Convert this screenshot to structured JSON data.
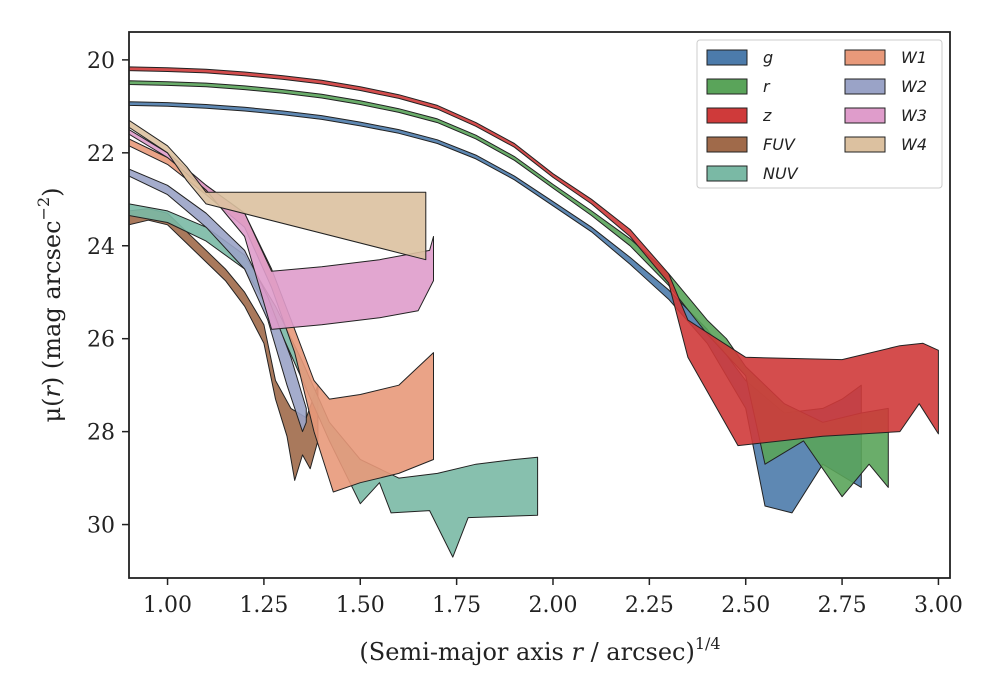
{
  "chart_data": {
    "type": "area",
    "xlabel_main": "(Semi-major axis ",
    "xlabel_var": "r",
    "xlabel_unit": " / arcsec)",
    "xlabel_sup": "1/4",
    "ylabel_sym": "μ(",
    "ylabel_var": "r",
    "ylabel_rest": ") (mag arcsec",
    "ylabel_sup": "−2",
    "ylabel_close": ")",
    "xlim": [
      0.9,
      3.03
    ],
    "ylim": [
      31.15,
      19.4
    ],
    "xticks": [
      1.0,
      1.25,
      1.5,
      1.75,
      2.0,
      2.25,
      2.5,
      2.75,
      3.0
    ],
    "xtick_labels": [
      "1.00",
      "1.25",
      "1.50",
      "1.75",
      "2.00",
      "2.25",
      "2.50",
      "2.75",
      "3.00"
    ],
    "yticks": [
      20,
      22,
      24,
      26,
      28,
      30
    ],
    "ytick_labels": [
      "20",
      "22",
      "24",
      "26",
      "28",
      "30"
    ],
    "legend_position": "top-right",
    "series": [
      {
        "name": "g",
        "color": "#4c7bab",
        "upper": [
          [
            0.9,
            20.9
          ],
          [
            1.0,
            20.92
          ],
          [
            1.1,
            20.96
          ],
          [
            1.2,
            21.02
          ],
          [
            1.3,
            21.1
          ],
          [
            1.4,
            21.2
          ],
          [
            1.5,
            21.34
          ],
          [
            1.6,
            21.5
          ],
          [
            1.7,
            21.72
          ],
          [
            1.8,
            22.05
          ],
          [
            1.9,
            22.5
          ],
          [
            2.0,
            23.05
          ],
          [
            2.1,
            23.6
          ],
          [
            2.2,
            24.25
          ],
          [
            2.3,
            24.95
          ],
          [
            2.4,
            25.8
          ],
          [
            2.5,
            26.9
          ],
          [
            2.6,
            27.6
          ],
          [
            2.7,
            27.5
          ],
          [
            2.75,
            27.3
          ],
          [
            2.8,
            27.0
          ]
        ],
        "lower": [
          [
            0.9,
            20.98
          ],
          [
            1.0,
            21.0
          ],
          [
            1.1,
            21.04
          ],
          [
            1.2,
            21.1
          ],
          [
            1.3,
            21.18
          ],
          [
            1.4,
            21.28
          ],
          [
            1.5,
            21.42
          ],
          [
            1.6,
            21.58
          ],
          [
            1.7,
            21.8
          ],
          [
            1.8,
            22.13
          ],
          [
            1.9,
            22.58
          ],
          [
            2.0,
            23.14
          ],
          [
            2.1,
            23.7
          ],
          [
            2.2,
            24.4
          ],
          [
            2.3,
            25.15
          ],
          [
            2.4,
            26.1
          ],
          [
            2.5,
            27.5
          ],
          [
            2.55,
            29.6
          ],
          [
            2.62,
            29.75
          ],
          [
            2.7,
            28.7
          ],
          [
            2.8,
            29.2
          ]
        ]
      },
      {
        "name": "r",
        "color": "#5aa45a",
        "upper": [
          [
            0.9,
            20.45
          ],
          [
            1.0,
            20.47
          ],
          [
            1.1,
            20.5
          ],
          [
            1.2,
            20.56
          ],
          [
            1.3,
            20.64
          ],
          [
            1.4,
            20.74
          ],
          [
            1.5,
            20.88
          ],
          [
            1.6,
            21.05
          ],
          [
            1.7,
            21.27
          ],
          [
            1.8,
            21.62
          ],
          [
            1.9,
            22.08
          ],
          [
            2.0,
            22.68
          ],
          [
            2.1,
            23.25
          ],
          [
            2.2,
            23.85
          ],
          [
            2.3,
            24.6
          ],
          [
            2.4,
            25.6
          ],
          [
            2.45,
            26.0
          ],
          [
            2.5,
            26.6
          ],
          [
            2.6,
            27.4
          ],
          [
            2.7,
            27.8
          ],
          [
            2.8,
            27.6
          ],
          [
            2.87,
            27.5
          ]
        ],
        "lower": [
          [
            0.9,
            20.53
          ],
          [
            1.0,
            20.55
          ],
          [
            1.1,
            20.58
          ],
          [
            1.2,
            20.64
          ],
          [
            1.3,
            20.72
          ],
          [
            1.4,
            20.82
          ],
          [
            1.5,
            20.96
          ],
          [
            1.6,
            21.13
          ],
          [
            1.7,
            21.35
          ],
          [
            1.8,
            21.7
          ],
          [
            1.9,
            22.16
          ],
          [
            2.0,
            22.76
          ],
          [
            2.1,
            23.35
          ],
          [
            2.2,
            24.0
          ],
          [
            2.3,
            24.85
          ],
          [
            2.4,
            25.9
          ],
          [
            2.5,
            26.8
          ],
          [
            2.55,
            28.7
          ],
          [
            2.65,
            28.2
          ],
          [
            2.75,
            29.4
          ],
          [
            2.82,
            28.7
          ],
          [
            2.87,
            29.2
          ]
        ]
      },
      {
        "name": "z",
        "color": "#cf3a3a",
        "upper": [
          [
            0.9,
            20.15
          ],
          [
            1.0,
            20.17
          ],
          [
            1.1,
            20.2
          ],
          [
            1.2,
            20.26
          ],
          [
            1.3,
            20.34
          ],
          [
            1.4,
            20.44
          ],
          [
            1.5,
            20.58
          ],
          [
            1.6,
            20.75
          ],
          [
            1.7,
            20.98
          ],
          [
            1.8,
            21.35
          ],
          [
            1.9,
            21.8
          ],
          [
            2.0,
            22.45
          ],
          [
            2.1,
            23.0
          ],
          [
            2.2,
            23.65
          ],
          [
            2.3,
            24.6
          ],
          [
            2.35,
            25.6
          ],
          [
            2.5,
            26.4
          ],
          [
            2.75,
            26.45
          ],
          [
            2.9,
            26.15
          ],
          [
            2.96,
            26.1
          ],
          [
            3.0,
            26.25
          ]
        ],
        "lower": [
          [
            0.9,
            20.23
          ],
          [
            1.0,
            20.25
          ],
          [
            1.1,
            20.28
          ],
          [
            1.2,
            20.34
          ],
          [
            1.3,
            20.42
          ],
          [
            1.4,
            20.52
          ],
          [
            1.5,
            20.66
          ],
          [
            1.6,
            20.83
          ],
          [
            1.7,
            21.06
          ],
          [
            1.8,
            21.43
          ],
          [
            1.9,
            21.88
          ],
          [
            2.0,
            22.53
          ],
          [
            2.1,
            23.1
          ],
          [
            2.2,
            23.8
          ],
          [
            2.3,
            24.8
          ],
          [
            2.35,
            26.4
          ],
          [
            2.48,
            28.3
          ],
          [
            2.7,
            28.1
          ],
          [
            2.9,
            28.0
          ],
          [
            2.95,
            27.4
          ],
          [
            3.0,
            28.05
          ]
        ]
      },
      {
        "name": "FUV",
        "color": "#a06a4a",
        "upper": [
          [
            0.9,
            23.25
          ],
          [
            0.95,
            23.2
          ],
          [
            1.0,
            23.3
          ],
          [
            1.05,
            23.7
          ],
          [
            1.1,
            24.1
          ],
          [
            1.15,
            24.5
          ],
          [
            1.2,
            25.0
          ],
          [
            1.25,
            25.7
          ],
          [
            1.28,
            26.9
          ],
          [
            1.32,
            27.5
          ],
          [
            1.36,
            27.7
          ],
          [
            1.39,
            27.0
          ]
        ],
        "lower": [
          [
            0.9,
            23.55
          ],
          [
            0.95,
            23.45
          ],
          [
            1.0,
            23.55
          ],
          [
            1.05,
            23.95
          ],
          [
            1.1,
            24.35
          ],
          [
            1.15,
            24.75
          ],
          [
            1.2,
            25.3
          ],
          [
            1.25,
            26.1
          ],
          [
            1.28,
            27.3
          ],
          [
            1.31,
            28.1
          ],
          [
            1.33,
            29.05
          ],
          [
            1.35,
            28.5
          ],
          [
            1.37,
            28.8
          ],
          [
            1.39,
            28.2
          ]
        ]
      },
      {
        "name": "NUV",
        "color": "#7ab9a5",
        "upper": [
          [
            0.9,
            23.1
          ],
          [
            1.0,
            23.25
          ],
          [
            1.1,
            23.6
          ],
          [
            1.2,
            24.2
          ],
          [
            1.28,
            25.3
          ],
          [
            1.35,
            26.5
          ],
          [
            1.42,
            27.8
          ],
          [
            1.5,
            28.6
          ],
          [
            1.6,
            29.0
          ],
          [
            1.7,
            28.9
          ],
          [
            1.8,
            28.7
          ],
          [
            1.9,
            28.6
          ],
          [
            1.96,
            28.55
          ]
        ],
        "lower": [
          [
            0.9,
            23.35
          ],
          [
            1.0,
            23.5
          ],
          [
            1.1,
            23.9
          ],
          [
            1.2,
            24.5
          ],
          [
            1.28,
            25.6
          ],
          [
            1.35,
            26.9
          ],
          [
            1.42,
            28.2
          ],
          [
            1.5,
            29.55
          ],
          [
            1.55,
            29.1
          ],
          [
            1.58,
            29.75
          ],
          [
            1.68,
            29.7
          ],
          [
            1.74,
            30.7
          ],
          [
            1.78,
            29.85
          ],
          [
            1.96,
            29.8
          ]
        ]
      },
      {
        "name": "W1",
        "color": "#e8997a",
        "upper": [
          [
            0.9,
            21.7
          ],
          [
            1.0,
            22.1
          ],
          [
            1.1,
            22.7
          ],
          [
            1.2,
            23.3
          ],
          [
            1.27,
            24.5
          ],
          [
            1.33,
            25.8
          ],
          [
            1.38,
            26.9
          ],
          [
            1.42,
            27.3
          ],
          [
            1.5,
            27.2
          ],
          [
            1.6,
            27.0
          ],
          [
            1.69,
            26.3
          ]
        ],
        "lower": [
          [
            0.9,
            21.85
          ],
          [
            1.0,
            22.25
          ],
          [
            1.1,
            22.9
          ],
          [
            1.2,
            23.6
          ],
          [
            1.27,
            24.9
          ],
          [
            1.33,
            26.3
          ],
          [
            1.38,
            28.0
          ],
          [
            1.43,
            29.3
          ],
          [
            1.5,
            29.1
          ],
          [
            1.6,
            28.9
          ],
          [
            1.69,
            28.6
          ]
        ]
      },
      {
        "name": "W2",
        "color": "#9aa3c7",
        "upper": [
          [
            0.9,
            22.35
          ],
          [
            1.0,
            22.7
          ],
          [
            1.1,
            23.3
          ],
          [
            1.2,
            24.1
          ],
          [
            1.26,
            25.1
          ],
          [
            1.32,
            26.4
          ],
          [
            1.36,
            27.5
          ]
        ],
        "lower": [
          [
            0.9,
            22.5
          ],
          [
            1.0,
            22.9
          ],
          [
            1.1,
            23.6
          ],
          [
            1.2,
            24.5
          ],
          [
            1.26,
            25.6
          ],
          [
            1.31,
            27.0
          ],
          [
            1.35,
            28.0
          ],
          [
            1.36,
            27.8
          ]
        ]
      },
      {
        "name": "W3",
        "color": "#df9ccb",
        "upper": [
          [
            0.9,
            21.5
          ],
          [
            1.0,
            22.0
          ],
          [
            1.1,
            22.7
          ],
          [
            1.2,
            23.3
          ],
          [
            1.27,
            24.55
          ],
          [
            1.4,
            24.45
          ],
          [
            1.55,
            24.3
          ],
          [
            1.68,
            24.1
          ],
          [
            1.69,
            23.8
          ]
        ],
        "lower": [
          [
            0.9,
            21.6
          ],
          [
            1.0,
            22.1
          ],
          [
            1.1,
            22.8
          ],
          [
            1.2,
            23.8
          ],
          [
            1.27,
            25.8
          ],
          [
            1.4,
            25.7
          ],
          [
            1.55,
            25.55
          ],
          [
            1.65,
            25.4
          ],
          [
            1.69,
            24.75
          ]
        ]
      },
      {
        "name": "W4",
        "color": "#dcc1a0",
        "upper": [
          [
            0.9,
            21.3
          ],
          [
            1.0,
            21.85
          ],
          [
            1.05,
            22.3
          ],
          [
            1.1,
            22.85
          ],
          [
            1.67,
            22.85
          ]
        ],
        "lower": [
          [
            0.9,
            21.45
          ],
          [
            1.0,
            22.0
          ],
          [
            1.05,
            22.6
          ],
          [
            1.1,
            23.1
          ],
          [
            1.67,
            24.3
          ]
        ]
      }
    ]
  }
}
